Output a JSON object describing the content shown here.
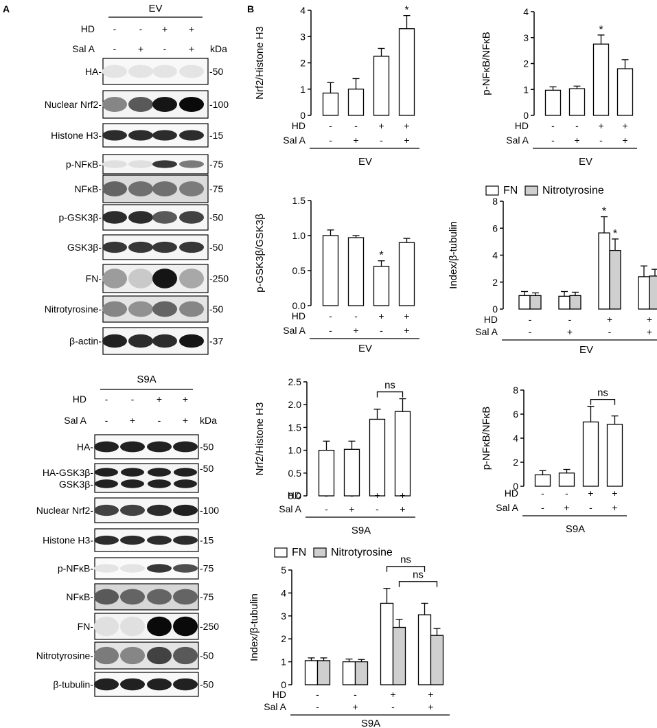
{
  "panel_labels": [
    "A",
    "B"
  ],
  "units": {
    "kda": "kDa"
  },
  "blot_sections": [
    {
      "group": "EV",
      "condition_rows": [
        {
          "label": "HD",
          "signs": [
            "-",
            "-",
            "+",
            "+"
          ]
        },
        {
          "label": "Sal A",
          "signs": [
            "-",
            "+",
            "-",
            "+"
          ]
        }
      ],
      "bands": [
        {
          "label": "HA-",
          "marker": "-50",
          "intensity": [
            0.03,
            0.03,
            0.03,
            0.03
          ],
          "thickness": 0.5,
          "background": 0.08
        },
        {
          "label": "Nuclear Nrf2-",
          "marker": "-100",
          "intensity": [
            0.45,
            0.65,
            0.95,
            1.0
          ],
          "thickness": 0.55,
          "background": 0.12
        },
        {
          "label": "Histone H3-",
          "marker": "-15",
          "intensity": [
            0.85,
            0.85,
            0.85,
            0.85
          ],
          "thickness": 0.45,
          "background": 0.08
        },
        {
          "label": "p-NFκB-",
          "marker": "-75",
          "intensity": [
            0.05,
            0.05,
            0.8,
            0.5
          ],
          "thickness": 0.4,
          "background": 0.1
        },
        {
          "label": "NFκB-",
          "marker": "-75",
          "intensity": [
            0.6,
            0.55,
            0.55,
            0.5
          ],
          "thickness": 0.55,
          "background": 0.4
        },
        {
          "label": "p-GSK3β-",
          "marker": "-50",
          "intensity": [
            0.85,
            0.85,
            0.65,
            0.75
          ],
          "thickness": 0.5,
          "background": 0.1
        },
        {
          "label": "GSK3β-",
          "marker": "-50",
          "intensity": [
            0.8,
            0.8,
            0.8,
            0.8
          ],
          "thickness": 0.45,
          "background": 0.1
        },
        {
          "label": "FN-",
          "marker": "-250",
          "intensity": [
            0.35,
            0.15,
            0.95,
            0.3
          ],
          "thickness": 0.7,
          "background": 0.18
        },
        {
          "label": "Nitrotyrosine-",
          "marker": "-50",
          "intensity": [
            0.45,
            0.4,
            0.6,
            0.45
          ],
          "thickness": 0.6,
          "background": 0.3
        },
        {
          "label": "β-actin-",
          "marker": "-37",
          "intensity": [
            0.9,
            0.85,
            0.85,
            0.95
          ],
          "thickness": 0.5,
          "background": 0.1
        }
      ]
    },
    {
      "group": "S9A",
      "condition_rows": [
        {
          "label": "HD",
          "signs": [
            "-",
            "-",
            "+",
            "+"
          ]
        },
        {
          "label": "Sal A",
          "signs": [
            "-",
            "+",
            "-",
            "+"
          ]
        }
      ],
      "bands": [
        {
          "label": "HA-",
          "marker": "-50",
          "intensity": [
            0.9,
            0.9,
            0.9,
            0.9
          ],
          "thickness": 0.45,
          "background": 0.08
        },
        {
          "label": "HA-GSK3β-\nGSK3β-",
          "marker": "-50",
          "intensity": [
            0.9,
            0.9,
            0.9,
            0.9
          ],
          "thickness": 0.3,
          "background": 0.12,
          "double": true
        },
        {
          "label": "Nuclear Nrf2-",
          "marker": "-100",
          "intensity": [
            0.75,
            0.75,
            0.85,
            0.9
          ],
          "thickness": 0.45,
          "background": 0.1
        },
        {
          "label": "Histone H3-",
          "marker": "-15",
          "intensity": [
            0.85,
            0.85,
            0.85,
            0.85
          ],
          "thickness": 0.4,
          "background": 0.08
        },
        {
          "label": "p-NFκB-",
          "marker": "-75",
          "intensity": [
            0.03,
            0.03,
            0.8,
            0.7
          ],
          "thickness": 0.4,
          "background": 0.06
        },
        {
          "label": "NFκB-",
          "marker": "-75",
          "intensity": [
            0.65,
            0.6,
            0.6,
            0.6
          ],
          "thickness": 0.6,
          "background": 0.45
        },
        {
          "label": "FN-",
          "marker": "-250",
          "intensity": [
            0.05,
            0.05,
            1.0,
            1.0
          ],
          "thickness": 0.75,
          "background": 0.12
        },
        {
          "label": "Nitrotyrosine-",
          "marker": "-50",
          "intensity": [
            0.5,
            0.45,
            0.75,
            0.65
          ],
          "thickness": 0.65,
          "background": 0.3
        },
        {
          "label": "β-tubulin-",
          "marker": "-50",
          "intensity": [
            0.9,
            0.9,
            0.9,
            0.9
          ],
          "thickness": 0.5,
          "background": 0.08
        }
      ]
    }
  ],
  "chart_data": [
    {
      "type": "bar",
      "ylabel": "Nrf2/Histone H3",
      "ylim": [
        0,
        4
      ],
      "yticks": [
        "0",
        "1",
        "2",
        "3",
        "4"
      ],
      "group_label": "EV",
      "condition_rows": [
        {
          "label": "HD",
          "signs": [
            "-",
            "-",
            "+",
            "+"
          ]
        },
        {
          "label": "Sal A",
          "signs": [
            "-",
            "+",
            "-",
            "+"
          ]
        }
      ],
      "series": [
        {
          "values": [
            0.85,
            1.0,
            2.25,
            3.3
          ],
          "errors": [
            0.4,
            0.4,
            0.3,
            0.5
          ],
          "stars": [
            "",
            "",
            "",
            "*"
          ]
        }
      ]
    },
    {
      "type": "bar",
      "ylabel": "p-NFκB/NFκB",
      "ylim": [
        0,
        4
      ],
      "yticks": [
        "0",
        "1",
        "2",
        "3",
        "4"
      ],
      "group_label": "EV",
      "condition_rows": [
        {
          "label": "HD",
          "signs": [
            "-",
            "-",
            "+",
            "+"
          ]
        },
        {
          "label": "Sal A",
          "signs": [
            "-",
            "+",
            "-",
            "+"
          ]
        }
      ],
      "series": [
        {
          "values": [
            0.97,
            1.03,
            2.75,
            1.8
          ],
          "errors": [
            0.13,
            0.1,
            0.35,
            0.35
          ],
          "stars": [
            "",
            "",
            "*",
            ""
          ]
        }
      ]
    },
    {
      "type": "bar",
      "ylabel": "p-GSK3β/GSK3β",
      "ylim": [
        0,
        1.5
      ],
      "yticks": [
        "0.0",
        "0.5",
        "1.0",
        "1.5"
      ],
      "group_label": "EV",
      "condition_rows": [
        {
          "label": "HD",
          "signs": [
            "-",
            "-",
            "+",
            "+"
          ]
        },
        {
          "label": "Sal A",
          "signs": [
            "-",
            "+",
            "-",
            "+"
          ]
        }
      ],
      "series": [
        {
          "values": [
            1.0,
            0.97,
            0.56,
            0.9
          ],
          "errors": [
            0.08,
            0.03,
            0.08,
            0.06
          ],
          "stars": [
            "",
            "",
            "*",
            ""
          ]
        }
      ]
    },
    {
      "type": "bar",
      "ylabel": "Index/β-tubulin",
      "ylim": [
        0,
        8
      ],
      "yticks": [
        "0",
        "2",
        "4",
        "6",
        "8"
      ],
      "group_label": "EV",
      "legend": [
        "FN",
        "Nitrotyrosine"
      ],
      "condition_rows": [
        {
          "label": "HD",
          "signs": [
            "-",
            "-",
            "+",
            "+"
          ]
        },
        {
          "label": "Sal A",
          "signs": [
            "-",
            "+",
            "-",
            "+"
          ]
        }
      ],
      "series": [
        {
          "name": "FN",
          "values": [
            1.0,
            0.95,
            5.65,
            2.4
          ],
          "errors": [
            0.3,
            0.35,
            1.2,
            0.8
          ],
          "stars": [
            "",
            "",
            "*",
            ""
          ]
        },
        {
          "name": "Nitrotyrosine",
          "values": [
            1.0,
            1.0,
            4.35,
            2.45
          ],
          "errors": [
            0.2,
            0.25,
            0.85,
            0.5
          ],
          "stars": [
            "",
            "",
            "*",
            ""
          ]
        }
      ]
    },
    {
      "type": "bar",
      "ylabel": "Nrf2/Histone H3",
      "ylim": [
        0,
        2.5
      ],
      "yticks": [
        "0.0",
        "0.5",
        "1.0",
        "1.5",
        "2.0",
        "2.5"
      ],
      "group_label": "S9A",
      "condition_rows": [
        {
          "label": "HD",
          "signs": [
            "-",
            "-",
            "+",
            "+"
          ]
        },
        {
          "label": "Sal A",
          "signs": [
            "-",
            "+",
            "-",
            "+"
          ]
        }
      ],
      "series": [
        {
          "values": [
            1.0,
            1.02,
            1.68,
            1.85
          ],
          "errors": [
            0.2,
            0.18,
            0.22,
            0.28
          ],
          "stars": [
            "",
            "",
            "",
            ""
          ]
        }
      ],
      "brackets": [
        {
          "from": 2,
          "to": 3,
          "label": "ns"
        }
      ]
    },
    {
      "type": "bar",
      "ylabel": "p-NFκB/NFκB",
      "ylim": [
        0,
        8
      ],
      "yticks": [
        "0",
        "2",
        "4",
        "6",
        "8"
      ],
      "group_label": "S9A",
      "condition_rows": [
        {
          "label": "HD",
          "signs": [
            "-",
            "-",
            "+",
            "+"
          ]
        },
        {
          "label": "Sal A",
          "signs": [
            "-",
            "+",
            "-",
            "+"
          ]
        }
      ],
      "series": [
        {
          "values": [
            0.95,
            1.1,
            5.35,
            5.15
          ],
          "errors": [
            0.35,
            0.3,
            1.3,
            0.7
          ],
          "stars": [
            "",
            "",
            "",
            ""
          ]
        }
      ],
      "brackets": [
        {
          "from": 2,
          "to": 3,
          "label": "ns"
        }
      ]
    },
    {
      "type": "bar",
      "ylabel": "Index/β-tubulin",
      "ylim": [
        0,
        5
      ],
      "yticks": [
        "0",
        "1",
        "2",
        "3",
        "4",
        "5"
      ],
      "group_label": "S9A",
      "legend": [
        "FN",
        "Nitrotyrosine"
      ],
      "condition_rows": [
        {
          "label": "HD",
          "signs": [
            "-",
            "-",
            "+",
            "+"
          ]
        },
        {
          "label": "Sal A",
          "signs": [
            "-",
            "+",
            "-",
            "+"
          ]
        }
      ],
      "series": [
        {
          "name": "FN",
          "values": [
            1.05,
            1.0,
            3.55,
            3.05
          ],
          "errors": [
            0.12,
            0.12,
            0.65,
            0.5
          ],
          "stars": [
            "",
            "",
            "",
            ""
          ]
        },
        {
          "name": "Nitrotyrosine",
          "values": [
            1.05,
            1.0,
            2.5,
            2.15
          ],
          "errors": [
            0.12,
            0.1,
            0.35,
            0.3
          ],
          "stars": [
            "",
            "",
            "",
            ""
          ]
        }
      ],
      "brackets": [
        {
          "from": 2,
          "to": 3,
          "label": "ns",
          "level": 2
        },
        {
          "from": 2,
          "to": 3,
          "label": "ns",
          "level": 1
        }
      ]
    }
  ]
}
